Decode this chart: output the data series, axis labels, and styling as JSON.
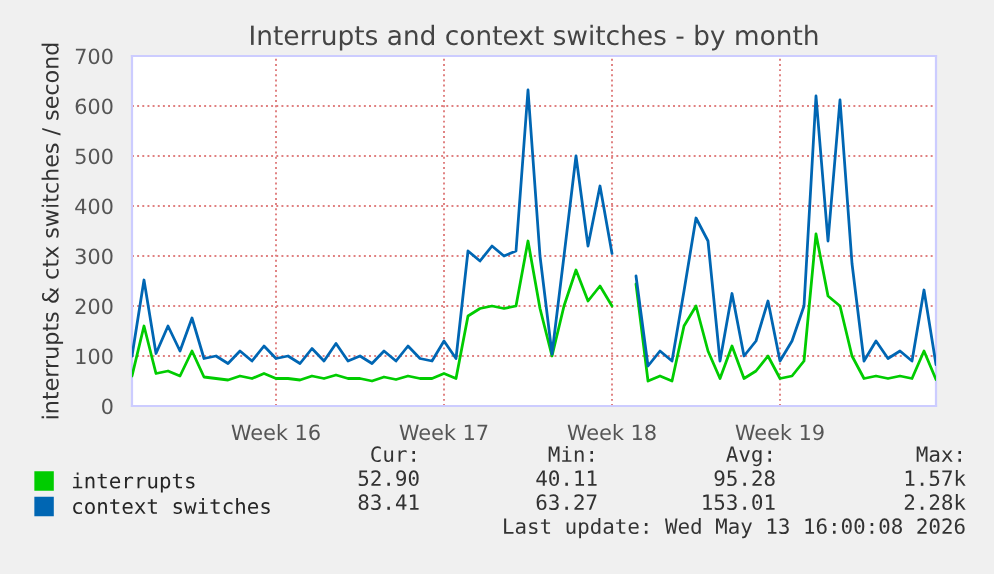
{
  "chart_data": {
    "type": "line",
    "title": "Interrupts and context switches - by month",
    "ylabel": "interrupts & ctx switches / second",
    "categories": [
      null,
      null,
      null,
      null,
      null,
      null,
      null,
      null,
      null,
      null,
      null,
      null,
      "Week 16",
      null,
      null,
      null,
      null,
      null,
      null,
      null,
      null,
      null,
      null,
      null,
      null,
      null,
      "Week 17",
      null,
      null,
      null,
      null,
      null,
      null,
      null,
      null,
      null,
      null,
      null,
      null,
      null,
      "Week 18",
      null,
      null,
      null,
      null,
      null,
      null,
      null,
      null,
      null,
      null,
      null,
      null,
      null,
      "Week 19",
      null,
      null,
      null,
      null,
      null,
      null,
      null,
      null,
      null,
      null,
      null,
      null,
      null
    ],
    "series": [
      {
        "name": "interrupts",
        "color": "#00cc00",
        "values": [
          60,
          160,
          65,
          70,
          60,
          110,
          58,
          55,
          52,
          60,
          55,
          65,
          55,
          55,
          52,
          60,
          55,
          62,
          55,
          55,
          50,
          58,
          53,
          60,
          55,
          55,
          65,
          55,
          180,
          195,
          200,
          195,
          200,
          330,
          195,
          100,
          200,
          272,
          210,
          240,
          200,
          null,
          244,
          50,
          60,
          50,
          160,
          200,
          110,
          55,
          120,
          55,
          70,
          100,
          55,
          60,
          90,
          344,
          220,
          200,
          100,
          55,
          60,
          55,
          60,
          55,
          110,
          53
        ]
      },
      {
        "name": "context switches",
        "color": "#0066b3",
        "values": [
          100,
          252,
          105,
          160,
          110,
          176,
          95,
          100,
          85,
          110,
          90,
          120,
          95,
          100,
          85,
          115,
          90,
          125,
          90,
          100,
          85,
          110,
          90,
          120,
          95,
          90,
          130,
          95,
          310,
          290,
          320,
          300,
          310,
          632,
          300,
          104,
          300,
          500,
          320,
          440,
          305,
          null,
          260,
          80,
          110,
          90,
          230,
          376,
          330,
          90,
          225,
          100,
          130,
          210,
          90,
          130,
          200,
          620,
          330,
          612,
          285,
          90,
          130,
          95,
          110,
          90,
          232,
          83
        ]
      }
    ],
    "ylim": [
      0,
      700
    ],
    "yticks": [
      0,
      100,
      200,
      300,
      400,
      500,
      600,
      700
    ],
    "grid": true,
    "legend": "bottom left",
    "line_style": "solid",
    "annotations": [
      "Cur:",
      "Min:",
      "Avg:",
      "Max:",
      "52.90",
      "40.11",
      "95.28",
      "1.57k",
      "83.41",
      "63.27",
      "153.01",
      "2.28k",
      "Last update: Wed May 13 16:00:08 2026"
    ]
  }
}
